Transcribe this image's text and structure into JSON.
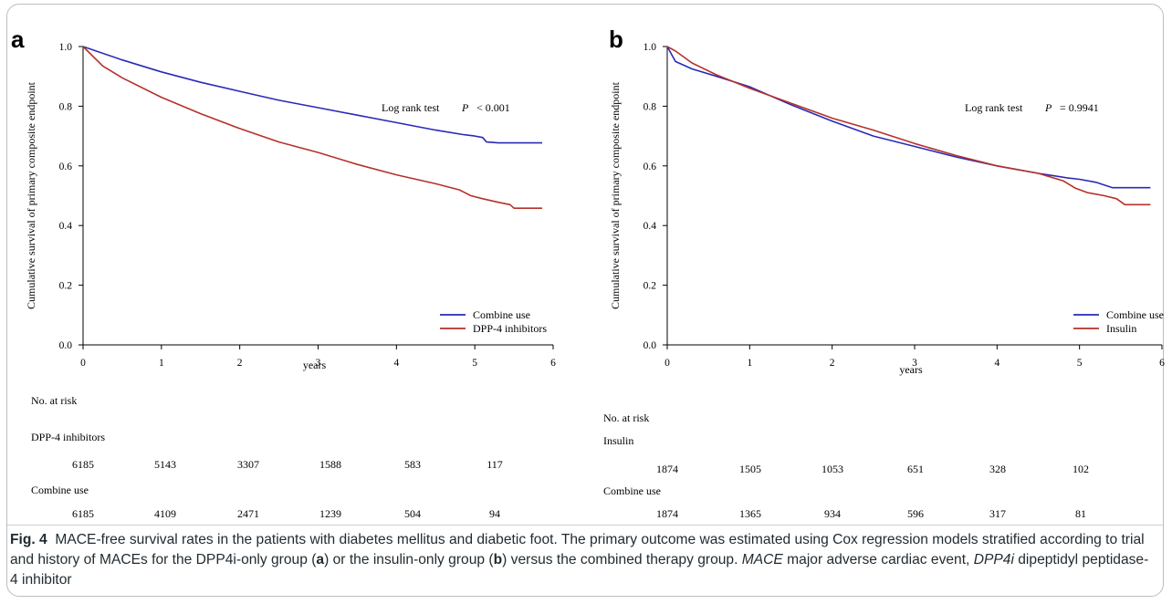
{
  "panels": [
    {
      "letter": "a",
      "chart_data": {
        "type": "line",
        "ylabel": "Cumulative survival of primary composite endpoint",
        "xlabel": "years",
        "xlim": [
          0,
          6
        ],
        "ylim": [
          0,
          1
        ],
        "xticks": [
          "0",
          "1",
          "2",
          "3",
          "4",
          "5",
          "6"
        ],
        "yticks": [
          "0.0",
          "0.2",
          "0.4",
          "0.6",
          "0.8",
          "1.0"
        ],
        "test_label": "Log rank test",
        "p_symbol": "P",
        "p_text": "< 0.001",
        "legend_position": "bottom-right",
        "series": [
          {
            "name": "Combine use",
            "color": "#2a2ab8",
            "x": [
              0,
              0.5,
              1,
              1.5,
              2,
              2.5,
              3,
              3.5,
              4,
              4.5,
              4.85,
              5.0,
              5.1,
              5.15,
              5.3,
              5.86
            ],
            "y": [
              1.0,
              0.955,
              0.915,
              0.88,
              0.85,
              0.82,
              0.795,
              0.77,
              0.745,
              0.72,
              0.705,
              0.7,
              0.695,
              0.68,
              0.677,
              0.677
            ]
          },
          {
            "name": "DPP-4 inhibitors",
            "color": "#b5312a",
            "x": [
              0,
              0.25,
              0.5,
              1,
              1.5,
              2,
              2.5,
              3,
              3.5,
              4,
              4.5,
              4.8,
              4.95,
              5.1,
              5.3,
              5.45,
              5.5,
              5.86
            ],
            "y": [
              1.0,
              0.935,
              0.895,
              0.83,
              0.775,
              0.725,
              0.68,
              0.645,
              0.605,
              0.57,
              0.54,
              0.52,
              0.5,
              0.49,
              0.478,
              0.47,
              0.458,
              0.458
            ]
          }
        ]
      },
      "risk_table": {
        "title": "No. at risk",
        "groups": [
          {
            "label": "DPP-4 inhibitors",
            "values": [
              "6185",
              "5143",
              "3307",
              "1588",
              "583",
              "117"
            ]
          },
          {
            "label": "Combine use",
            "values": [
              "6185",
              "4109",
              "2471",
              "1239",
              "504",
              "94"
            ]
          }
        ]
      }
    },
    {
      "letter": "b",
      "chart_data": {
        "type": "line",
        "ylabel": "Cumulative survival of primary composite endpoint",
        "xlabel": "years",
        "xlim": [
          0,
          6
        ],
        "ylim": [
          0,
          1
        ],
        "xticks": [
          "0",
          "1",
          "2",
          "3",
          "4",
          "5",
          "6"
        ],
        "yticks": [
          "0.0",
          "0.2",
          "0.4",
          "0.6",
          "0.8",
          "1.0"
        ],
        "test_label": "Log rank test",
        "p_symbol": "P",
        "p_text": "= 0.9941",
        "legend_position": "bottom-right",
        "series": [
          {
            "name": "Combine use",
            "color": "#2a2ab8",
            "x": [
              0,
              0.1,
              0.3,
              0.6,
              1,
              1.5,
              2,
              2.5,
              3,
              3.5,
              4,
              4.5,
              4.85,
              5.0,
              5.2,
              5.4,
              5.86
            ],
            "y": [
              1.0,
              0.95,
              0.925,
              0.9,
              0.865,
              0.805,
              0.75,
              0.7,
              0.665,
              0.63,
              0.6,
              0.575,
              0.56,
              0.555,
              0.545,
              0.527,
              0.527
            ]
          },
          {
            "name": "Insulin",
            "color": "#b5312a",
            "x": [
              0,
              0.1,
              0.3,
              0.6,
              1,
              1.5,
              2,
              2.5,
              3,
              3.5,
              4,
              4.5,
              4.8,
              4.95,
              5.1,
              5.3,
              5.45,
              5.55,
              5.86
            ],
            "y": [
              1.0,
              0.985,
              0.945,
              0.905,
              0.86,
              0.81,
              0.76,
              0.72,
              0.675,
              0.635,
              0.6,
              0.575,
              0.55,
              0.525,
              0.51,
              0.5,
              0.49,
              0.47,
              0.47
            ]
          }
        ]
      },
      "risk_table": {
        "title": "No. at risk",
        "groups": [
          {
            "label": "Insulin",
            "values": [
              "1874",
              "1505",
              "1053",
              "651",
              "328",
              "102"
            ]
          },
          {
            "label": "Combine use",
            "values": [
              "1874",
              "1365",
              "934",
              "596",
              "317",
              "81"
            ]
          }
        ]
      }
    }
  ],
  "caption": {
    "fig_label": "Fig. 4",
    "text_1": "MACE-free survival rates in the patients with diabetes mellitus and diabetic foot. The primary outcome was estimated using Cox regression models stratified according to trial and history of MACEs for the DPP4i-only group (",
    "ref_a": "a",
    "text_2": ") or the insulin-only group (",
    "ref_b": "b",
    "text_3": ") versus the combined therapy group. ",
    "abbr_1": "MACE",
    "text_4": " major adverse cardiac event, ",
    "abbr_2": "DPP4i",
    "text_5": " dipeptidyl peptidase-4 inhibitor"
  }
}
